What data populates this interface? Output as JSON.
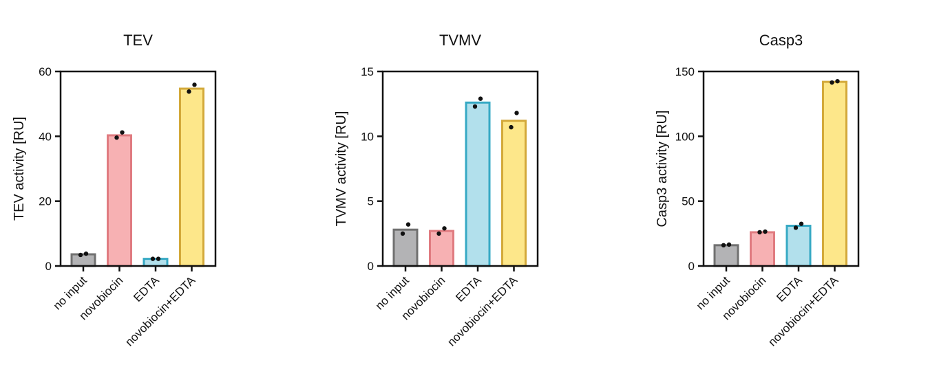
{
  "chart_data": [
    {
      "type": "bar",
      "title": "TEV",
      "xlabel": "",
      "ylabel": "TEV activity [RU]",
      "ylim": [
        0,
        60
      ],
      "yticks": [
        0,
        20,
        40,
        60
      ],
      "categories": [
        "no input",
        "novobiocin",
        "EDTA",
        "novobiocin+EDTA"
      ],
      "values": [
        3.6,
        40.3,
        2.2,
        54.7
      ],
      "points": [
        [
          3.4,
          3.8
        ],
        [
          39.6,
          41.2
        ],
        [
          2.2,
          2.2
        ],
        [
          53.8,
          55.9
        ]
      ],
      "colors": {
        "fill": [
          "#b3b3b5",
          "#f7b1b3",
          "#b2e0ec",
          "#fde78a"
        ],
        "stroke": [
          "#707070",
          "#e07b80",
          "#36a9c4",
          "#d3a93a"
        ]
      },
      "grid": false
    },
    {
      "type": "bar",
      "title": "TVMV",
      "xlabel": "",
      "ylabel": "TVMV activity [RU]",
      "ylim": [
        0,
        15
      ],
      "yticks": [
        0,
        5,
        10,
        15
      ],
      "categories": [
        "no input",
        "novobiocin",
        "EDTA",
        "novobiocin+EDTA"
      ],
      "values": [
        2.8,
        2.7,
        12.6,
        11.2
      ],
      "points": [
        [
          2.5,
          3.2
        ],
        [
          2.5,
          2.9
        ],
        [
          12.3,
          12.9
        ],
        [
          10.7,
          11.8
        ]
      ],
      "colors": {
        "fill": [
          "#b3b3b5",
          "#f7b1b3",
          "#b2e0ec",
          "#fde78a"
        ],
        "stroke": [
          "#707070",
          "#e07b80",
          "#36a9c4",
          "#d3a93a"
        ]
      },
      "grid": false
    },
    {
      "type": "bar",
      "title": "Casp3",
      "xlabel": "",
      "ylabel": "Casp3 activity [RU]",
      "ylim": [
        0,
        150
      ],
      "yticks": [
        0,
        50,
        100,
        150
      ],
      "categories": [
        "no input",
        "novobiocin",
        "EDTA",
        "novobiocin+EDTA"
      ],
      "values": [
        16,
        26,
        31,
        142
      ],
      "points": [
        [
          16,
          16.5
        ],
        [
          26,
          26.5
        ],
        [
          29.5,
          32.5
        ],
        [
          141.5,
          142.5
        ]
      ],
      "colors": {
        "fill": [
          "#b3b3b5",
          "#f7b1b3",
          "#b2e0ec",
          "#fde78a"
        ],
        "stroke": [
          "#707070",
          "#e07b80",
          "#36a9c4",
          "#d3a93a"
        ]
      },
      "grid": false
    }
  ]
}
